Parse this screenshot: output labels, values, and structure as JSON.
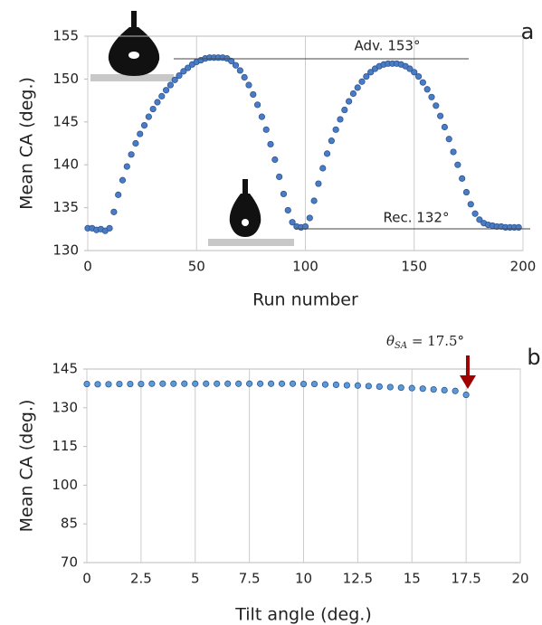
{
  "chart_data": [
    {
      "type": "scatter",
      "panel_label": "a",
      "annotations": [
        "Adv. 153°",
        "Rec. 132°"
      ],
      "xlabel": "Run number",
      "ylabel": "Mean CA (deg.)",
      "xlim": [
        0,
        200
      ],
      "xticks": [
        0,
        50,
        100,
        150,
        200
      ],
      "ylim": [
        130,
        155
      ],
      "yticks": [
        130,
        135,
        140,
        145,
        150,
        155
      ],
      "grid": true,
      "series": [
        {
          "color": "#4a7cc4",
          "x": [
            0,
            2,
            4,
            6,
            8,
            10,
            12,
            14,
            16,
            18,
            20,
            22,
            24,
            26,
            28,
            30,
            32,
            34,
            36,
            38,
            40,
            42,
            44,
            46,
            48,
            50,
            52,
            54,
            56,
            58,
            60,
            62,
            64,
            66,
            68,
            70,
            72,
            74,
            76,
            78,
            80,
            82,
            84,
            86,
            88,
            90,
            92,
            94,
            96,
            98,
            100,
            102,
            104,
            106,
            108,
            110,
            112,
            114,
            116,
            118,
            120,
            122,
            124,
            126,
            128,
            130,
            132,
            134,
            136,
            138,
            140,
            142,
            144,
            146,
            148,
            150,
            152,
            154,
            156,
            158,
            160,
            162,
            164,
            166,
            168,
            170,
            172,
            174,
            176,
            178,
            180,
            182,
            184,
            186,
            188,
            190,
            192,
            194,
            196,
            198
          ],
          "values": [
            132.6,
            132.6,
            132.4,
            132.5,
            132.3,
            132.6,
            134.5,
            136.5,
            138.2,
            139.8,
            141.2,
            142.5,
            143.6,
            144.6,
            145.6,
            146.5,
            147.3,
            148.0,
            148.7,
            149.3,
            149.9,
            150.4,
            150.9,
            151.3,
            151.7,
            152.0,
            152.2,
            152.4,
            152.5,
            152.5,
            152.5,
            152.5,
            152.4,
            152.1,
            151.6,
            151.0,
            150.2,
            149.3,
            148.2,
            147.0,
            145.6,
            144.1,
            142.4,
            140.6,
            138.6,
            136.6,
            134.7,
            133.3,
            132.8,
            132.7,
            132.8,
            133.8,
            135.8,
            137.8,
            139.6,
            141.3,
            142.8,
            144.1,
            145.3,
            146.4,
            147.4,
            148.3,
            149.0,
            149.7,
            150.3,
            150.8,
            151.2,
            151.5,
            151.7,
            151.8,
            151.8,
            151.8,
            151.7,
            151.5,
            151.2,
            150.8,
            150.3,
            149.6,
            148.8,
            147.9,
            146.9,
            145.7,
            144.4,
            143.0,
            141.5,
            140.0,
            138.4,
            136.8,
            135.4,
            134.3,
            133.6,
            133.2,
            133.0,
            132.9,
            132.8,
            132.8,
            132.7,
            132.7,
            132.7,
            132.7
          ]
        }
      ]
    },
    {
      "type": "scatter",
      "panel_label": "b",
      "annotation": {
        "symbol": "θ",
        "subscript": "SA",
        "text": " = 17.5°"
      },
      "xlabel": "Tilt angle (deg.)",
      "ylabel": "Mean CA (deg.)",
      "xlim": [
        0,
        20
      ],
      "xticks": [
        0,
        2.5,
        5,
        7.5,
        10,
        12.5,
        15,
        17.5,
        20
      ],
      "ylim": [
        70,
        145
      ],
      "yticks": [
        70,
        85,
        100,
        115,
        130,
        145
      ],
      "grid": true,
      "series": [
        {
          "color": "#5b9bd5",
          "x": [
            0,
            0.5,
            1,
            1.5,
            2,
            2.5,
            3,
            3.5,
            4,
            4.5,
            5,
            5.5,
            6,
            6.5,
            7,
            7.5,
            8,
            8.5,
            9,
            9.5,
            10,
            10.5,
            11,
            11.5,
            12,
            12.5,
            13,
            13.5,
            14,
            14.5,
            15,
            15.5,
            16,
            16.5,
            17,
            17.5
          ],
          "values": [
            139.2,
            139.1,
            139.1,
            139.2,
            139.2,
            139.2,
            139.3,
            139.3,
            139.3,
            139.3,
            139.3,
            139.3,
            139.3,
            139.3,
            139.3,
            139.3,
            139.3,
            139.3,
            139.3,
            139.3,
            139.2,
            139.2,
            139.0,
            138.9,
            138.7,
            138.6,
            138.4,
            138.2,
            138.0,
            137.8,
            137.6,
            137.4,
            137.1,
            136.8,
            136.5,
            135.0
          ]
        }
      ]
    }
  ]
}
